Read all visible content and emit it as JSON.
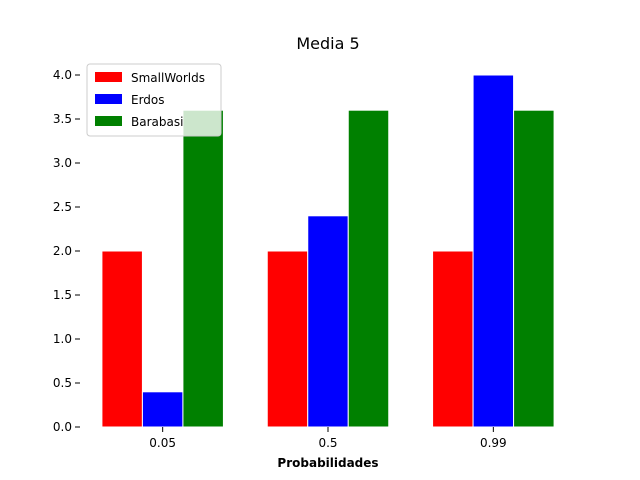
{
  "chart_data": {
    "type": "bar",
    "title": "Media 5",
    "xlabel": "Probabilidades",
    "ylabel": "",
    "categories": [
      "0.05",
      "0.5",
      "0.99"
    ],
    "series": [
      {
        "name": "SmallWorlds",
        "values": [
          2.0,
          2.0,
          2.0
        ],
        "color": "#ff0000"
      },
      {
        "name": "Erdos",
        "values": [
          0.4,
          2.4,
          4.0
        ],
        "color": "#0000ff"
      },
      {
        "name": "Barabasi",
        "values": [
          3.6,
          3.6,
          3.6
        ],
        "color": "#008000"
      }
    ],
    "ylim": [
      0,
      4.0
    ],
    "yticks": [
      "0.0",
      "0.5",
      "1.0",
      "1.5",
      "2.0",
      "2.5",
      "3.0",
      "3.5",
      "4.0"
    ],
    "grid": false,
    "legend_position": "top-left"
  }
}
